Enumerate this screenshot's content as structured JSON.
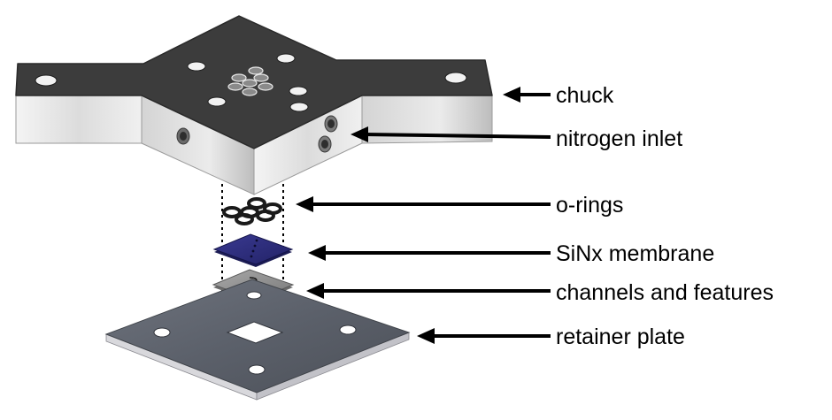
{
  "labels": {
    "chuck": "chuck",
    "nitrogen_inlet": "nitrogen inlet",
    "o_rings": "o-rings",
    "membrane": "SiNx membrane",
    "channels": "channels and features",
    "retainer": "retainer plate"
  },
  "colors": {
    "chuck_top": "#3c3c3c",
    "chuck_side": "#e6e6e6",
    "membrane": "#2b2b7a",
    "channel_chip": "#8e8e8e",
    "plate": "#5d626d",
    "arrow": "#000000"
  }
}
